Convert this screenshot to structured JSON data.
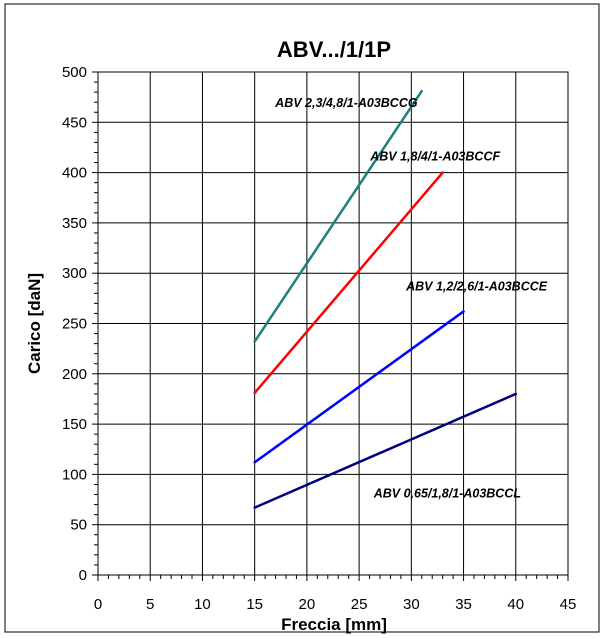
{
  "chart_data": {
    "type": "line",
    "title": "ABV.../1/1P",
    "xlabel": "Freccia [mm]",
    "ylabel": "Carico [daN]",
    "xlim": [
      0,
      45
    ],
    "ylim": [
      0,
      500
    ],
    "x_ticks": [
      0,
      5,
      10,
      15,
      20,
      25,
      30,
      35,
      40,
      45
    ],
    "y_ticks": [
      0,
      50,
      100,
      150,
      200,
      250,
      300,
      350,
      400,
      450,
      500
    ],
    "grid": true,
    "series": [
      {
        "name": "ABV 2,3/4,8/1-A03BCCG",
        "color": "#1a8080",
        "x": [
          15,
          31
        ],
        "y": [
          232,
          481
        ],
        "label_x": 30.6,
        "label_y": 465,
        "label_anchor": "end"
      },
      {
        "name": "ABV 1,8/4/1-A03BCCF",
        "color": "#ff0000",
        "x": [
          15,
          33
        ],
        "y": [
          181,
          400
        ],
        "label_x": 38.5,
        "label_y": 412,
        "label_anchor": "end"
      },
      {
        "name": "ABV 1,2/2,6/1-A03BCCE",
        "color": "#0000ff",
        "x": [
          15,
          35
        ],
        "y": [
          112,
          262
        ],
        "label_x": 43,
        "label_y": 283,
        "label_anchor": "end"
      },
      {
        "name": "ABV 0,65/1,8/1-A03BCCL",
        "color": "#000080",
        "x": [
          15,
          40
        ],
        "y": [
          67,
          180
        ],
        "label_x": 40.5,
        "label_y": 77,
        "label_anchor": "end"
      }
    ]
  }
}
